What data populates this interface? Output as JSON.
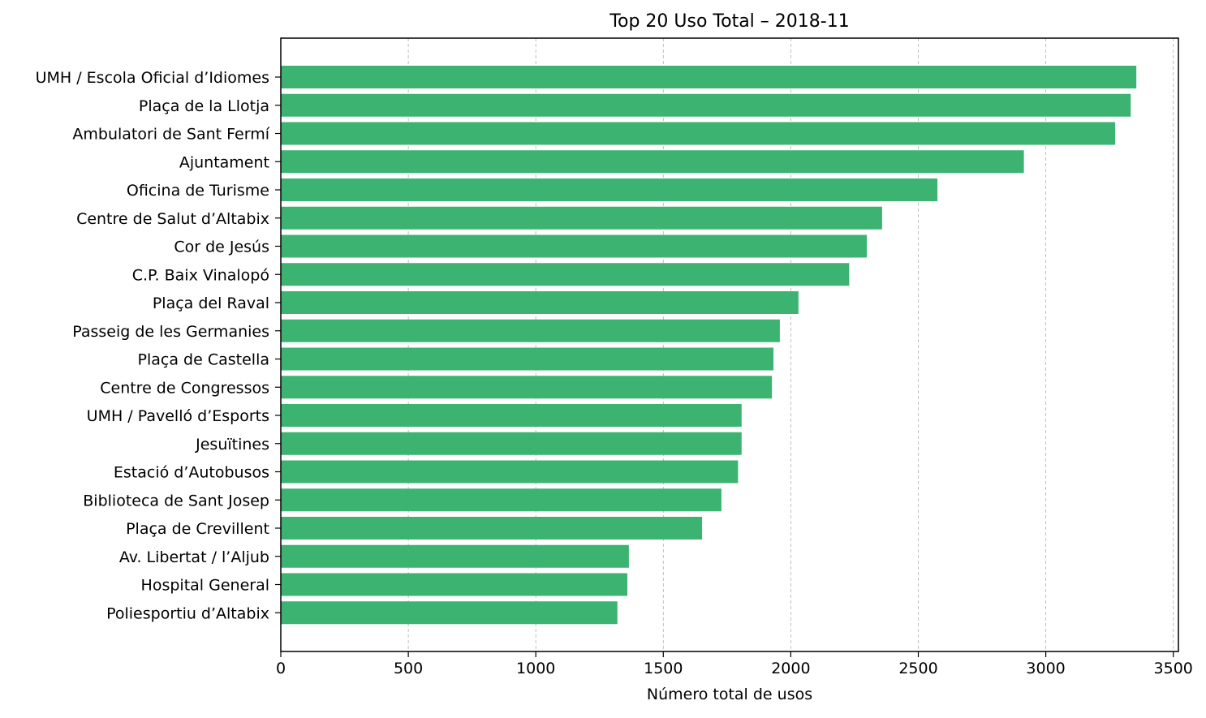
{
  "chart_data": {
    "type": "bar",
    "orientation": "horizontal",
    "title": "Top 20 Uso Total – 2018-11",
    "xlabel": "Número total de usos",
    "ylabel": "",
    "xlim": [
      0,
      3520
    ],
    "xticks": [
      0,
      500,
      1000,
      1500,
      2000,
      2500,
      3000,
      3500
    ],
    "grid": "x-axis dashed",
    "legend": "none",
    "bar_color": "#3cb371",
    "categories": [
      "UMH / Escola Oficial d’Idiomes",
      "Plaça de la Llotja",
      "Ambulatori de Sant Fermí",
      "Ajuntament",
      "Oficina de Turisme",
      "Centre de Salut d’Altabix",
      "Cor de Jesús",
      "C.P. Baix Vinalopó",
      "Plaça del Raval",
      "Passeig de les Germanies",
      "Plaça de Castella",
      "Centre de Congressos",
      "UMH / Pavelló d’Esports",
      "Jesuïtines",
      "Estació d’Autobusos",
      "Biblioteca de Sant Josep",
      "Plaça de Crevillent",
      "Av. Libertat / l’Aljub",
      "Hospital General",
      "Poliesportiu d’Altabix"
    ],
    "values": [
      3355,
      3333,
      3272,
      2914,
      2575,
      2358,
      2298,
      2229,
      2030,
      1957,
      1932,
      1926,
      1807,
      1807,
      1793,
      1728,
      1652,
      1365,
      1359,
      1320
    ]
  }
}
